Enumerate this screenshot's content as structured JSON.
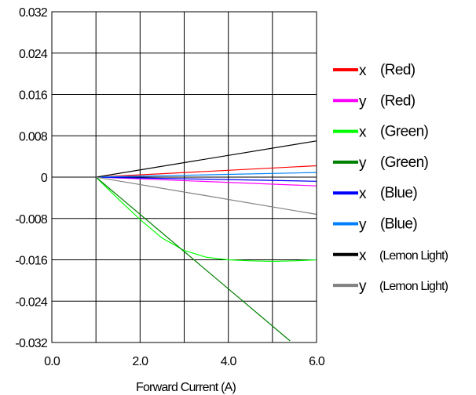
{
  "chart_data": {
    "type": "line",
    "title": "",
    "xlabel": "Forward Current (A)",
    "ylabel": "",
    "xlim": [
      0,
      6
    ],
    "ylim": [
      -0.032,
      0.032
    ],
    "x_ticks": [
      0,
      2,
      4,
      6
    ],
    "x_tick_labels": [
      "0.0",
      "2.0",
      "4.0",
      "6.0"
    ],
    "y_ticks": [
      0.032,
      0.024,
      0.016,
      0.008,
      0,
      -0.008,
      -0.016,
      -0.024,
      -0.032
    ],
    "y_tick_labels": [
      "0.032",
      "0.024",
      "0.016",
      "0.008",
      "0",
      "-0.008",
      "-0.016",
      "-0.024",
      "-0.032"
    ],
    "grid": true,
    "legend_position": "right",
    "series": [
      {
        "name": "x  (Red)",
        "legend_letter": "x",
        "legend_label": "(Red)",
        "color": "#ff0000",
        "x": [
          1,
          6
        ],
        "y": [
          0,
          0.0022
        ]
      },
      {
        "name": "y  (Red)",
        "legend_letter": "y",
        "legend_label": "(Red)",
        "color": "#ff00ff",
        "x": [
          1,
          6
        ],
        "y": [
          0,
          -0.0017
        ]
      },
      {
        "name": "x  (Green)",
        "legend_letter": "x",
        "legend_label": "(Green)",
        "color": "#00ff00",
        "x": [
          1,
          1.5,
          2,
          2.5,
          3,
          3.5,
          4,
          4.5,
          5,
          5.5,
          6
        ],
        "y": [
          0,
          -0.0042,
          -0.0082,
          -0.0118,
          -0.0142,
          -0.0155,
          -0.016,
          -0.0162,
          -0.0163,
          -0.0162,
          -0.016
        ]
      },
      {
        "name": "y  (Green)",
        "legend_letter": "y",
        "legend_label": "(Green)",
        "color": "#008000",
        "x": [
          1,
          5.4
        ],
        "y": [
          0,
          -0.0317
        ]
      },
      {
        "name": "x  (Blue)",
        "legend_letter": "x",
        "legend_label": "(Blue)",
        "color": "#0000ff",
        "x": [
          1,
          6
        ],
        "y": [
          0,
          -0.0008
        ]
      },
      {
        "name": "y  (Blue)",
        "legend_letter": "y",
        "legend_label": "(Blue)",
        "color": "#0080ff",
        "x": [
          1,
          6
        ],
        "y": [
          0,
          0.0009
        ]
      },
      {
        "name": "x  (Lemon Light)",
        "legend_letter": "x",
        "legend_label": "(Lemon Light)",
        "color": "#000000",
        "x": [
          1,
          6
        ],
        "y": [
          0,
          0.007
        ]
      },
      {
        "name": "y  (Lemon Light)",
        "legend_letter": "y",
        "legend_label": "(Lemon Light)",
        "color": "#808080",
        "x": [
          1,
          6
        ],
        "y": [
          0,
          -0.0072
        ]
      }
    ]
  }
}
